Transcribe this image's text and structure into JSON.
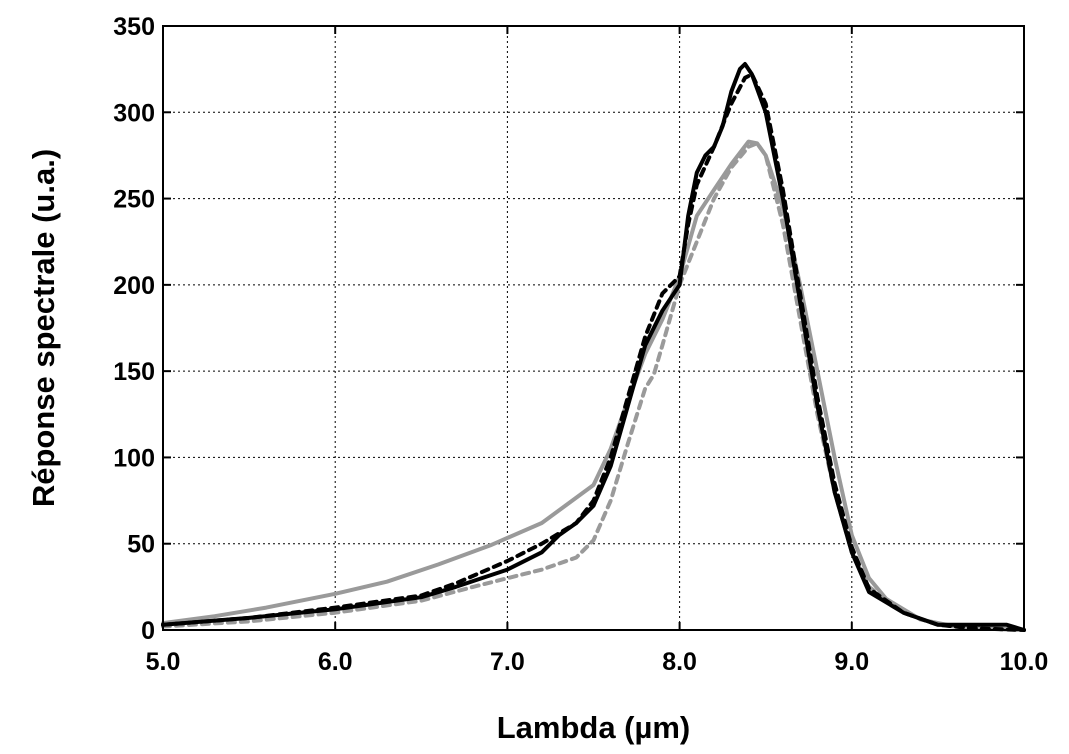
{
  "chart_data": {
    "type": "line",
    "title": "",
    "xlabel": "Lambda (µm)",
    "ylabel": "Réponse spectrale (u.a.)",
    "xlim": [
      5.0,
      10.0
    ],
    "ylim": [
      0,
      350
    ],
    "grid": true,
    "x_ticks": [
      5.0,
      6.0,
      7.0,
      8.0,
      9.0,
      10.0
    ],
    "x_tick_labels": [
      "5.0",
      "6.0",
      "7.0",
      "8.0",
      "9.0",
      "10.0"
    ],
    "y_ticks": [
      0,
      50,
      100,
      150,
      200,
      250,
      300,
      350
    ],
    "y_tick_labels": [
      "0",
      "50",
      "100",
      "150",
      "200",
      "250",
      "300",
      "350"
    ],
    "series": [
      {
        "color": "#9a9a9a",
        "dash": "solid",
        "x": [
          5.0,
          5.3,
          5.6,
          6.0,
          6.3,
          6.6,
          6.9,
          7.2,
          7.5,
          7.6,
          7.7,
          7.8,
          7.9,
          8.0,
          8.1,
          8.2,
          8.3,
          8.4,
          8.45,
          8.5,
          8.6,
          8.7,
          8.8,
          8.9,
          9.0,
          9.1,
          9.2,
          9.4,
          9.6,
          9.8,
          10.0
        ],
        "values": [
          4,
          8,
          13,
          21,
          28,
          38,
          49,
          62,
          84,
          105,
          133,
          160,
          180,
          205,
          240,
          255,
          270,
          283,
          282,
          275,
          245,
          200,
          150,
          100,
          55,
          30,
          18,
          6,
          2,
          1,
          0
        ]
      },
      {
        "color": "#9a9a9a",
        "dash": "dashed",
        "x": [
          5.0,
          5.5,
          6.0,
          6.5,
          6.8,
          7.0,
          7.2,
          7.4,
          7.5,
          7.6,
          7.7,
          7.8,
          7.85,
          7.9,
          8.0,
          8.1,
          8.2,
          8.3,
          8.4,
          8.45,
          8.5,
          8.6,
          8.7,
          8.8,
          8.9,
          9.0,
          9.1,
          9.3,
          9.5,
          9.7,
          10.0
        ],
        "values": [
          2,
          5,
          10,
          17,
          25,
          30,
          35,
          42,
          52,
          75,
          108,
          140,
          148,
          165,
          200,
          225,
          250,
          268,
          280,
          282,
          275,
          235,
          180,
          125,
          80,
          45,
          25,
          10,
          3,
          1,
          0
        ]
      },
      {
        "color": "#000000",
        "dash": "solid",
        "x": [
          5.0,
          5.5,
          6.0,
          6.5,
          6.7,
          7.0,
          7.2,
          7.3,
          7.4,
          7.5,
          7.6,
          7.7,
          7.8,
          7.9,
          8.0,
          8.05,
          8.1,
          8.15,
          8.2,
          8.25,
          8.3,
          8.35,
          8.38,
          8.42,
          8.5,
          8.6,
          8.7,
          8.8,
          8.9,
          9.0,
          9.1,
          9.3,
          9.5,
          9.7,
          9.9,
          10.0
        ],
        "values": [
          3,
          7,
          12,
          19,
          25,
          35,
          45,
          55,
          62,
          72,
          95,
          130,
          165,
          185,
          200,
          240,
          265,
          275,
          280,
          292,
          312,
          325,
          328,
          322,
          300,
          250,
          190,
          130,
          80,
          45,
          22,
          10,
          3,
          3,
          3,
          0
        ]
      },
      {
        "color": "#000000",
        "dash": "dashed",
        "x": [
          5.0,
          5.5,
          6.0,
          6.5,
          6.7,
          7.0,
          7.2,
          7.4,
          7.5,
          7.6,
          7.7,
          7.8,
          7.9,
          8.0,
          8.05,
          8.1,
          8.2,
          8.3,
          8.38,
          8.42,
          8.5,
          8.6,
          8.7,
          8.8,
          8.9,
          9.0,
          9.1,
          9.3,
          9.5,
          9.7,
          10.0
        ],
        "values": [
          3,
          7,
          13,
          20,
          27,
          40,
          50,
          62,
          75,
          100,
          135,
          170,
          195,
          205,
          235,
          258,
          280,
          305,
          320,
          322,
          305,
          255,
          195,
          135,
          85,
          48,
          24,
          10,
          3,
          1,
          0
        ]
      }
    ]
  }
}
